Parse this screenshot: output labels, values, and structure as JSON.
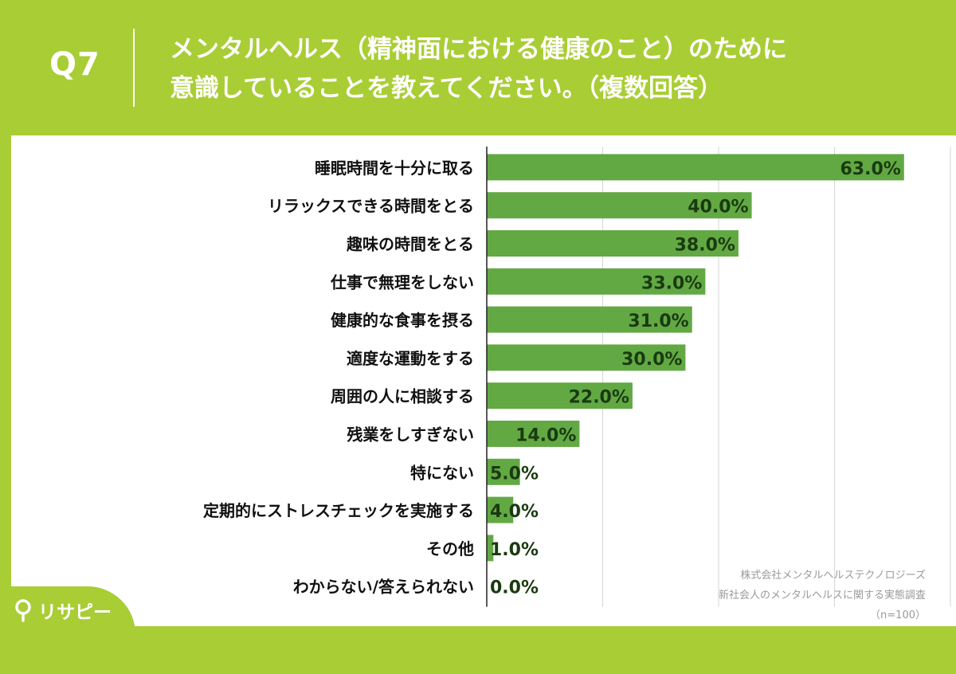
{
  "header": {
    "question_number": "Q7",
    "title_line1": "メンタルヘルス（精神面における健康のこと）のために",
    "title_line2": "意識していることを教えてください。（複数回答）"
  },
  "colors": {
    "background": "#a9cd35",
    "bar": "#62a944",
    "value_text": "#1a3a10",
    "grid": "#d6d6d6"
  },
  "chart_data": {
    "type": "bar",
    "orientation": "horizontal",
    "categories": [
      "睡眠時間を十分に取る",
      "リラックスできる時間をとる",
      "趣味の時間をとる",
      "仕事で無理をしない",
      "健康的な食事を摂る",
      "適度な運動をする",
      "周囲の人に相談する",
      "残業をしすぎない",
      "特にない",
      "定期的にストレスチェックを実施する",
      "その他",
      "わからない/答えられない"
    ],
    "values": [
      63.0,
      40.0,
      38.0,
      33.0,
      31.0,
      30.0,
      22.0,
      14.0,
      5.0,
      4.0,
      1.0,
      0.0
    ],
    "value_labels": [
      "63.0%",
      "40.0%",
      "38.0%",
      "33.0%",
      "31.0%",
      "30.0%",
      "22.0%",
      "14.0%",
      "5.0%",
      "4.0%",
      "1.0%",
      "0.0%"
    ],
    "xlim": [
      0,
      70
    ],
    "grid_at": [
      0,
      17.5,
      35,
      52.5,
      70
    ],
    "grid": true,
    "legend": "none"
  },
  "source": {
    "line1": "株式会社メンタルヘルステクノロジーズ",
    "line2": "新社会人のメンタルヘルスに関する実態調査",
    "line3": "（n=100）"
  },
  "logo": {
    "text": "リサピー",
    "icon": "map-pin-icon"
  }
}
